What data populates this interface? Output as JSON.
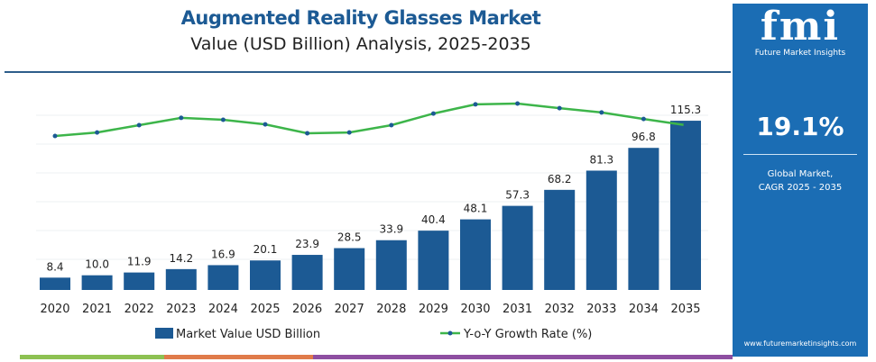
{
  "header": {
    "title": "Augmented Reality Glasses Market",
    "subtitle": "Value (USD Billion) Analysis, 2025-2035"
  },
  "side": {
    "logo": "fmi",
    "logo_text": "Future Market Insights",
    "cagr": "19.1%",
    "desc1": "Global Market,",
    "desc2": "CAGR 2025 - 2035",
    "url": "www.futuremarketinsights.com",
    "color": "#1b6db4"
  },
  "chart_data": {
    "type": "bar",
    "categories": [
      "2020",
      "2021",
      "2022",
      "2023",
      "2024",
      "2025",
      "2026",
      "2027",
      "2028",
      "2029",
      "2030",
      "2031",
      "2032",
      "2033",
      "2034",
      "2035"
    ],
    "series": [
      {
        "name": "Market Value USD Billion",
        "type": "bar",
        "color": "#1c5a94",
        "values": [
          8.4,
          10.0,
          11.9,
          14.2,
          16.9,
          20.1,
          23.9,
          28.5,
          33.9,
          40.4,
          48.1,
          57.3,
          68.2,
          81.3,
          96.8,
          115.3
        ],
        "labels": [
          "8.4",
          "10.0",
          "11.9",
          "14.2",
          "16.9",
          "20.1",
          "23.9",
          "28.5",
          "33.9",
          "40.4",
          "48.1",
          "57.3",
          "68.2",
          "81.3",
          "96.8",
          "115.3"
        ]
      },
      {
        "name": "Y-o-Y Growth Rate (%)",
        "type": "line",
        "color": "#3db54a",
        "values": [
          18.0,
          18.13,
          18.4,
          18.67,
          18.6,
          18.43,
          18.1,
          18.13,
          18.4,
          18.83,
          19.17,
          19.2,
          19.03,
          18.87,
          18.63,
          18.4
        ]
      }
    ],
    "grid": true,
    "legend": "bottom"
  },
  "bottom_colors": [
    "#8dc152",
    "#e07b4a",
    "#8e4fa1"
  ]
}
